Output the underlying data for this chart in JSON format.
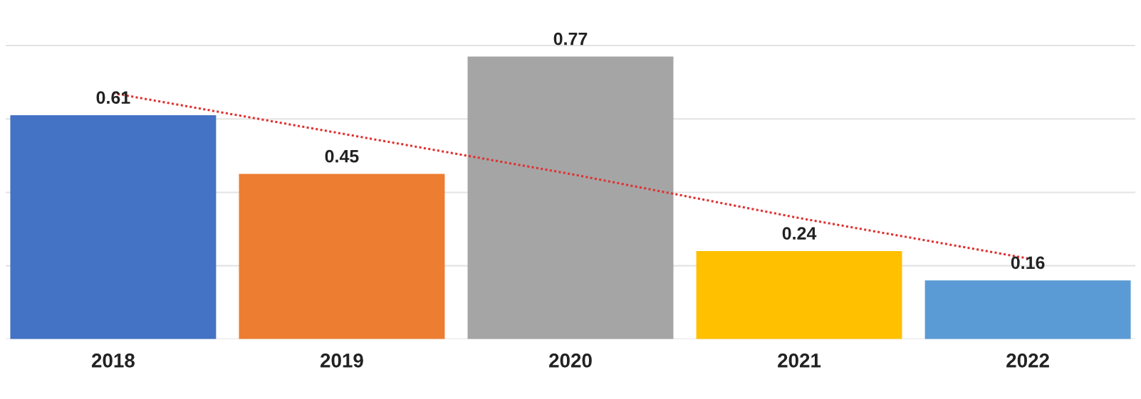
{
  "chart_data": {
    "type": "bar",
    "categories": [
      "2018",
      "2019",
      "2020",
      "2021",
      "2022"
    ],
    "series": [
      {
        "colors": [
          "#4472c4",
          "#ed7d31",
          "#a5a5a5",
          "#ffc000",
          "#5b9bd5"
        ],
        "values": [
          0.61,
          0.45,
          0.77,
          0.24,
          0.16
        ],
        "value_labels": [
          "0.61",
          "0.45",
          "0.77",
          "0.24",
          "0.16"
        ]
      },
      {
        "type": "line",
        "color": "#e0302f",
        "line_style": "dotted",
        "values": [
          0.67,
          0.56,
          0.45,
          0.33,
          0.22
        ]
      }
    ],
    "yticks": [
      {
        "value": 0,
        "label": null
      },
      {
        "value": 0.2,
        "label": null
      },
      {
        "value": 0.4,
        "label": null
      },
      {
        "value": 0.6,
        "label": null
      },
      {
        "value": 0.8,
        "label": null
      }
    ],
    "grid": "y",
    "tick_labels": "x"
  }
}
